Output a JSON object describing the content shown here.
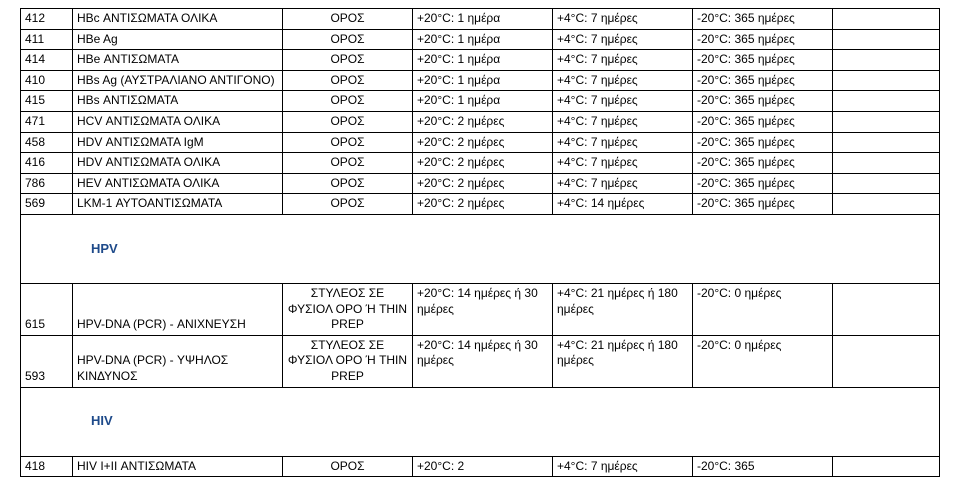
{
  "rows_a": [
    {
      "code": "412",
      "name": "HBc ΑΝΤΙΣΩΜΑΤΑ ΟΛΙΚΑ",
      "specimen": "ΟΡΟΣ",
      "c4": "+20°C: 1 ημέρα",
      "c5": "+4°C: 7 ημέρες",
      "c6": "-20°C: 365 ημέρες"
    },
    {
      "code": "411",
      "name": "HBe Ag",
      "specimen": "ΟΡΟΣ",
      "c4": "+20°C: 1 ημέρα",
      "c5": "+4°C: 7 ημέρες",
      "c6": "-20°C: 365 ημέρες"
    },
    {
      "code": "414",
      "name": "HBe ΑΝΤΙΣΩΜΑΤΑ",
      "specimen": "ΟΡΟΣ",
      "c4": "+20°C: 1 ημέρα",
      "c5": "+4°C: 7 ημέρες",
      "c6": "-20°C: 365 ημέρες"
    },
    {
      "code": "410",
      "name": "HBs Ag (ΑΥΣΤΡΑΛΙΑΝΟ ΑΝΤΙΓΟΝΟ)",
      "specimen": "ΟΡΟΣ",
      "c4": "+20°C: 1 ημέρα",
      "c5": "+4°C: 7 ημέρες",
      "c6": "-20°C: 365 ημέρες"
    },
    {
      "code": "415",
      "name": "HBs ΑΝΤΙΣΩΜΑΤΑ",
      "specimen": "ΟΡΟΣ",
      "c4": "+20°C: 1 ημέρα",
      "c5": "+4°C: 7 ημέρες",
      "c6": "-20°C: 365 ημέρες"
    },
    {
      "code": "471",
      "name": "HCV ΑΝΤΙΣΩΜΑΤΑ ΟΛΙΚΑ",
      "specimen": "ΟΡΟΣ",
      "c4": "+20°C: 2 ημέρες",
      "c5": "+4°C: 7 ημέρες",
      "c6": "-20°C: 365 ημέρες"
    },
    {
      "code": "458",
      "name": "HDV ΑΝΤΙΣΩΜΑΤΑ IgM",
      "specimen": "ΟΡΟΣ",
      "c4": "+20°C: 2 ημέρες",
      "c5": "+4°C: 7 ημέρες",
      "c6": "-20°C: 365 ημέρες"
    },
    {
      "code": "416",
      "name": "HDV ΑΝΤΙΣΩΜΑΤΑ ΟΛΙΚΑ",
      "specimen": "ΟΡΟΣ",
      "c4": "+20°C: 2 ημέρες",
      "c5": "+4°C: 7 ημέρες",
      "c6": "-20°C: 365 ημέρες"
    },
    {
      "code": "786",
      "name": "HEV ΑΝΤΙΣΩΜΑΤΑ ΟΛΙΚΑ",
      "specimen": "ΟΡΟΣ",
      "c4": "+20°C: 2 ημέρες",
      "c5": "+4°C: 7 ημέρες",
      "c6": "-20°C: 365 ημέρες"
    },
    {
      "code": "569",
      "name": "LKM-1 ΑΥΤΟΑΝΤΙΣΩΜΑΤΑ",
      "specimen": "ΟΡΟΣ",
      "c4": "+20°C: 2 ημέρες",
      "c5": "+4°C: 14 ημέρες",
      "c6": "-20°C: 365 ημέρες"
    }
  ],
  "section_hpv": "HPV",
  "rows_b": [
    {
      "code": "615",
      "name": "HPV-DNA (PCR) - ΑΝΙΧΝΕΥΣΗ",
      "specimen": "ΣΤΥΛΕΟΣ ΣΕ ΦΥΣΙΟΛ ΟΡΟ Ή THIN PREP",
      "c4": "+20°C: 14 ημέρες ή 30 ημέρες",
      "c5": "+4°C: 21 ημέρες ή 180 ημέρες",
      "c6": "-20°C: 0 ημέρες"
    },
    {
      "code": "593",
      "name": "HPV-DNA (PCR) - ΥΨΗΛΟΣ ΚΙΝΔΥΝΟΣ",
      "specimen": "ΣΤΥΛΕΟΣ ΣΕ ΦΥΣΙΟΛ ΟΡΟ Ή THIN PREP",
      "c4": "+20°C: 14 ημέρες ή 30 ημέρες",
      "c5": "+4°C: 21 ημέρες ή 180 ημέρες",
      "c6": "-20°C: 0 ημέρες"
    }
  ],
  "section_hiv": "HIV",
  "rows_c": [
    {
      "code": "418",
      "name": "HIV I+II ΑΝΤΙΣΩΜΑΤΑ",
      "specimen": "ΟΡΟΣ",
      "c4": "+20°C: 2",
      "c5": "+4°C: 7 ημέρες",
      "c6": "-20°C: 365"
    }
  ]
}
